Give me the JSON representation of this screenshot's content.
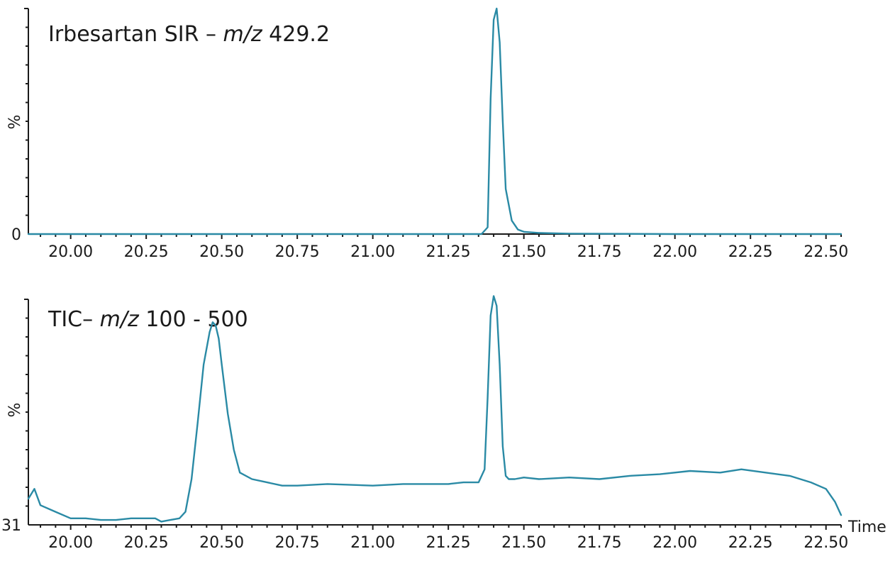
{
  "chart_data": [
    {
      "type": "line",
      "title": "Irbesartan SIR – ",
      "title_italic": "m/z",
      "title_suffix": " 429.2",
      "ylabel": "%",
      "ymin_label": "0",
      "xlim": [
        19.86,
        22.55
      ],
      "ylim": [
        0,
        100
      ],
      "xticks": [
        "20.00",
        "20.25",
        "20.50",
        "20.75",
        "21.00",
        "21.25",
        "21.50",
        "21.75",
        "22.00",
        "22.25",
        "22.50"
      ],
      "series": [
        {
          "color": "#2a8aa5",
          "x": [
            19.86,
            20.5,
            21.0,
            21.3,
            21.36,
            21.38,
            21.39,
            21.4,
            21.41,
            21.42,
            21.43,
            21.44,
            21.46,
            21.48,
            21.5,
            21.55,
            21.65,
            22.0,
            22.55
          ],
          "y": [
            0,
            0,
            0,
            0,
            0,
            3,
            60,
            95,
            100,
            85,
            50,
            20,
            6,
            2,
            1,
            0.5,
            0.2,
            0,
            0
          ]
        }
      ]
    },
    {
      "type": "line",
      "title": "TIC– ",
      "title_italic": "m/z",
      "title_suffix": " 100 - 500",
      "ylabel": "%",
      "ymin_label": "31",
      "xlabel": "Time",
      "xlim": [
        19.86,
        22.55
      ],
      "ylim": [
        31,
        100
      ],
      "xticks": [
        "20.00",
        "20.25",
        "20.50",
        "20.75",
        "21.00",
        "21.25",
        "21.50",
        "21.75",
        "22.00",
        "22.25",
        "22.50"
      ],
      "series": [
        {
          "color": "#2a8aa5",
          "x": [
            19.86,
            19.88,
            19.9,
            19.95,
            20.0,
            20.05,
            20.1,
            20.15,
            20.2,
            20.25,
            20.28,
            20.3,
            20.33,
            20.36,
            20.38,
            20.4,
            20.42,
            20.44,
            20.46,
            20.47,
            20.48,
            20.49,
            20.5,
            20.52,
            20.54,
            20.56,
            20.6,
            20.65,
            20.7,
            20.75,
            20.85,
            21.0,
            21.1,
            21.2,
            21.25,
            21.3,
            21.35,
            21.37,
            21.38,
            21.39,
            21.4,
            21.41,
            21.42,
            21.43,
            21.44,
            21.45,
            21.47,
            21.5,
            21.55,
            21.65,
            21.75,
            21.85,
            21.95,
            22.05,
            22.15,
            22.22,
            22.3,
            22.38,
            22.45,
            22.5,
            22.53,
            22.55
          ],
          "y": [
            39,
            42,
            37,
            35,
            33,
            33,
            32.5,
            32.5,
            33,
            33,
            33,
            32,
            32.5,
            33,
            35,
            45,
            62,
            80,
            90,
            93,
            92,
            88,
            80,
            65,
            54,
            47,
            45,
            44,
            43,
            43,
            43.5,
            43,
            43.5,
            43.5,
            43.5,
            44,
            44,
            48,
            70,
            95,
            101,
            98,
            80,
            55,
            46,
            45,
            45,
            45.5,
            45,
            45.5,
            45,
            46,
            46.5,
            47.5,
            47,
            48,
            47,
            46,
            44,
            42,
            38,
            34
          ]
        }
      ]
    }
  ]
}
